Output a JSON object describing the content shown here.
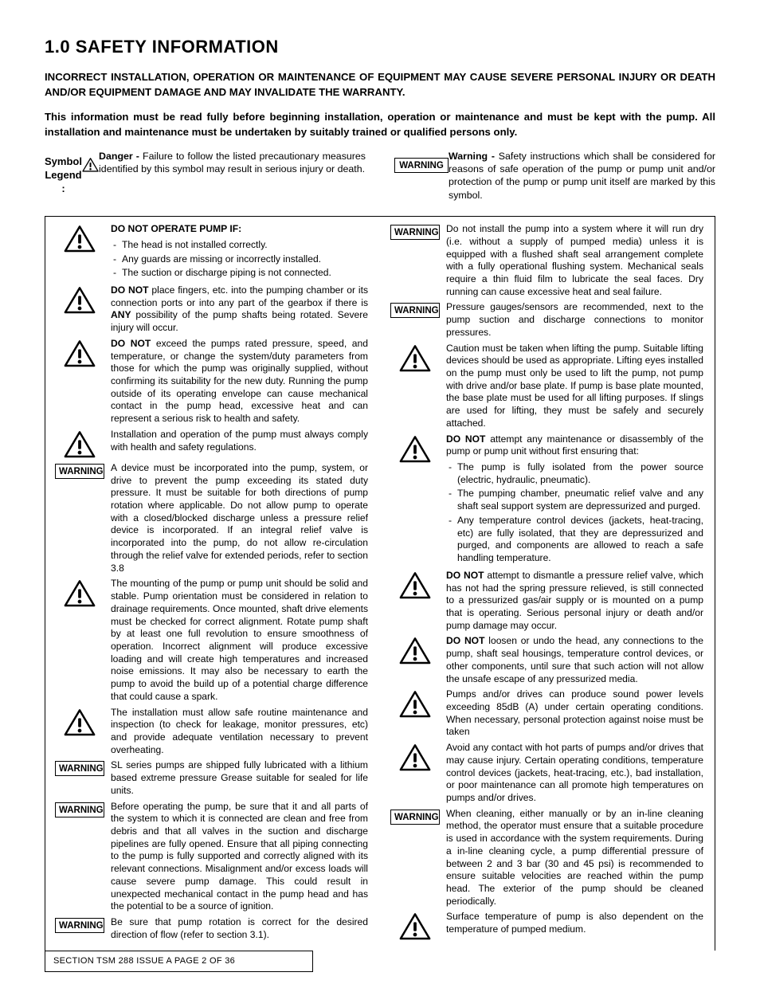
{
  "title": "1.0    SAFETY INFORMATION",
  "intro1": "INCORRECT INSTALLATION, OPERATION OR MAINTENANCE OF EQUIPMENT MAY CAUSE SEVERE PERSONAL INJURY OR DEATH AND/OR EQUIPMENT DAMAGE AND MAY INVALIDATE THE WARRANTY.",
  "intro2": "This information must be read fully before beginning installation, operation or maintenance and must be kept with the pump. All installation and maintenance must be undertaken by suitably trained or qualified persons only.",
  "legend_label_l1": "Symbol",
  "legend_label_l2": "Legend :",
  "legend_danger": "Danger - Failure to follow the listed precautionary measures identified by this symbol may result in serious injury or death.",
  "legend_warning": "Warning - Safety instructions which shall be considered for reasons of safe operation of the pump or pump unit and/or protection of the pump or pump unit itself are marked by this symbol.",
  "warning_label": "WARNING",
  "left": {
    "i1_head": "DO NOT OPERATE PUMP IF:",
    "i1_li1": "The head is not installed correctly.",
    "i1_li2": "Any guards are missing or incorrectly installed.",
    "i1_li3": "The suction or discharge piping is not connected.",
    "i2": "DO NOT place fingers, etc. into the pumping chamber or its connection ports or into any part of the gearbox if there is ANY possibility of the pump shafts being rotated. Severe injury will occur.",
    "i3": "DO NOT exceed the pumps rated pressure, speed, and temperature, or change the system/duty parameters from those for which the pump was originally supplied, without confirming its suitability for the new duty. Running the pump outside of its operating envelope can cause mechanical contact in the pump head, excessive heat and can represent a serious risk to health and safety.",
    "i4": "Installation and operation of the pump must always comply with health and safety regulations.",
    "i5": "A device must be incorporated into the pump, system, or drive to prevent the pump exceeding its stated duty pressure. It must be suitable for both directions of pump rotation where applicable. Do not allow pump to operate with a closed/blocked discharge unless a pressure relief device is incorporated. If an integral relief valve is incorporated into the pump, do not allow re-circulation through the relief valve for extended periods, refer to section 3.8",
    "i6": "The mounting of the pump or pump unit should be solid and stable. Pump orientation must be considered in relation to drainage requirements. Once mounted, shaft drive elements must be checked for correct alignment. Rotate pump shaft by at least one full revolution to ensure smoothness of operation. Incorrect alignment will produce excessive loading and will create high temperatures and increased noise emissions. It may also be necessary to earth the pump to avoid the build up of a potential charge difference that could cause a spark.",
    "i7": "The installation must allow safe routine maintenance and inspection (to check for leakage, monitor pressures, etc) and provide adequate ventilation necessary to prevent overheating.",
    "i8": "SL series pumps are shipped fully lubricated with a lithium based extreme pressure Grease suitable for sealed for life units.",
    "i9": "Before operating the pump, be sure that it and all parts of the system to which it is connected are clean and free from debris and that all valves in the suction and discharge pipelines are fully opened. Ensure that all piping connecting to the pump is fully supported and correctly aligned with its relevant connections. Misalignment and/or excess loads will cause severe pump damage. This could result in unexpected mechanical contact in the pump head and has the potential to be a source of ignition.",
    "i10": "Be sure that pump rotation is correct for the desired direction of flow (refer to section 3.1)."
  },
  "right": {
    "r1": "Do not install the pump into a system where it will run dry (i.e. without a supply of pumped media) unless it is equipped with a flushed shaft seal arrangement complete with a fully operational flushing system. Mechanical seals require a thin fluid film to lubricate the seal faces. Dry running can cause excessive heat and seal failure.",
    "r2": "Pressure gauges/sensors are recommended, next to the pump suction and discharge connections to monitor pressures.",
    "r3": "Caution must be taken when lifting the pump. Suitable lifting devices should be used as appropriate. Lifting eyes installed on the pump must only be used to lift the pump, not pump with drive and/or base plate. If pump is base plate mounted, the base plate must be used for all lifting purposes. If slings are used for lifting, they must be safely and securely attached.",
    "r4_lead": "DO NOT attempt any maintenance or disassembly of the pump or pump unit without first ensuring that:",
    "r4_li1": "The pump is fully isolated from the power source (electric, hydraulic, pneumatic).",
    "r4_li2": "The pumping chamber, pneumatic relief valve and any shaft seal support system are depressurized and purged.",
    "r4_li3": "Any temperature control devices (jackets, heat-tracing, etc) are fully isolated, that they are depressurized and purged, and components are allowed to reach a safe handling temperature.",
    "r5": "DO NOT attempt to dismantle a pressure relief valve, which has not had the spring pressure relieved, is still connected to a pressurized gas/air supply or is mounted on a pump that is operating. Serious personal injury or death and/or pump damage may occur.",
    "r6": "DO NOT loosen or undo the head, any connections to the pump, shaft seal housings, temperature control devices, or other components, until sure that such action will not allow the unsafe escape of any pressurized media.",
    "r7": "Pumps and/or drives can produce sound power levels exceeding 85dB (A) under certain operating conditions. When necessary, personal protection against noise must be taken",
    "r8": "Avoid any contact with hot parts of pumps and/or drives that may cause injury. Certain operating conditions, temperature control devices (jackets, heat-tracing, etc.), bad installation, or poor maintenance can all promote high temperatures on pumps and/or drives.",
    "r9": "When cleaning, either manually or by an  in-line cleaning method, the operator must ensure that a suitable procedure is used in accordance with the system requirements. During a in-line cleaning cycle, a pump differential pressure of between 2 and 3 bar (30 and 45 psi) is recommended to ensure suitable velocities are reached within the pump head. The exterior of the pump should be cleaned periodically.",
    "r10": "Surface temperature of pump is also dependent on the temperature of pumped medium."
  },
  "footer": "SECTION TSM   288       ISSUE    A          PAGE 2  OF  36"
}
